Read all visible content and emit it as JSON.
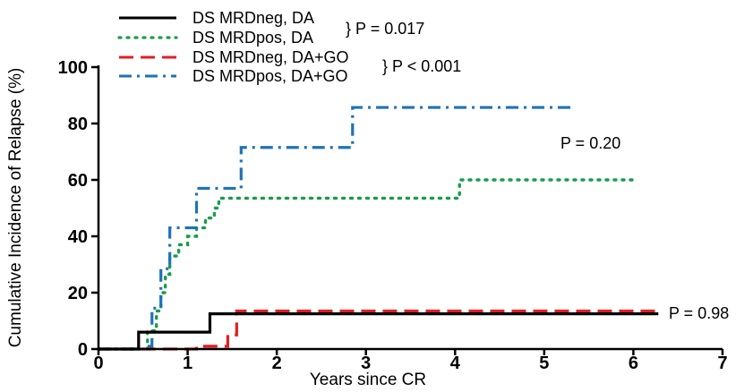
{
  "chart_data": {
    "type": "line",
    "subtype": "step",
    "xlabel": "Years since CR",
    "ylabel": "Cumulative Incidence of Relapse (%)",
    "xlim": [
      0,
      7
    ],
    "ylim": [
      0,
      100
    ],
    "x_ticks": [
      0,
      1,
      2,
      3,
      4,
      5,
      6,
      7
    ],
    "y_ticks": [
      0,
      20,
      40,
      60,
      80,
      100
    ],
    "grid": false,
    "legend_position": "top-left",
    "series": [
      {
        "name": "DS MRDneg, DA",
        "color": "#000000",
        "line_style": "solid",
        "x": [
          0,
          0.45,
          1.25,
          6.28
        ],
        "y": [
          0,
          6,
          12.5,
          12.5
        ]
      },
      {
        "name": "DS MRDpos, DA",
        "color": "#1a9c4e",
        "line_style": "dotted",
        "x": [
          0,
          0.55,
          0.65,
          0.7,
          0.75,
          0.8,
          0.9,
          1.0,
          1.1,
          1.2,
          1.3,
          1.35,
          1.4,
          4.05,
          6.05
        ],
        "y": [
          0,
          6.5,
          13.5,
          20,
          26.5,
          33,
          37,
          40,
          43,
          46.5,
          50,
          53.5,
          53.5,
          60,
          60
        ]
      },
      {
        "name": "DS MRDneg, DA+GO",
        "color": "#e31e24",
        "line_style": "dashed",
        "x": [
          0,
          1.1,
          1.45,
          1.55,
          6.3
        ],
        "y": [
          0,
          1,
          5,
          13.5,
          13.5
        ]
      },
      {
        "name": "DS MRDpos, DA+GO",
        "color": "#1f72b8",
        "line_style": "dash-dot",
        "x": [
          0,
          0.55,
          0.6,
          0.7,
          0.8,
          1.1,
          1.6,
          2.85,
          5.3
        ],
        "y": [
          0,
          1,
          14.5,
          28.5,
          43,
          57,
          71.5,
          85.7,
          85.7
        ]
      }
    ],
    "legend": [
      "DS MRDneg, DA",
      "DS MRDpos, DA",
      "DS MRDneg, DA+GO",
      "DS MRDpos, DA+GO"
    ],
    "annotations": [
      {
        "text": "} P = 0.017",
        "groups": [
          "DS MRDneg, DA",
          "DS MRDpos, DA"
        ]
      },
      {
        "text": "} P < 0.001",
        "groups": [
          "DS MRDneg, DA+GO",
          "DS MRDpos, DA+GO"
        ]
      },
      {
        "text": "P = 0.20",
        "near_series": "DS MRDpos, DA"
      },
      {
        "text": "P = 0.98",
        "near_series": "DS MRDneg, DA"
      }
    ]
  }
}
